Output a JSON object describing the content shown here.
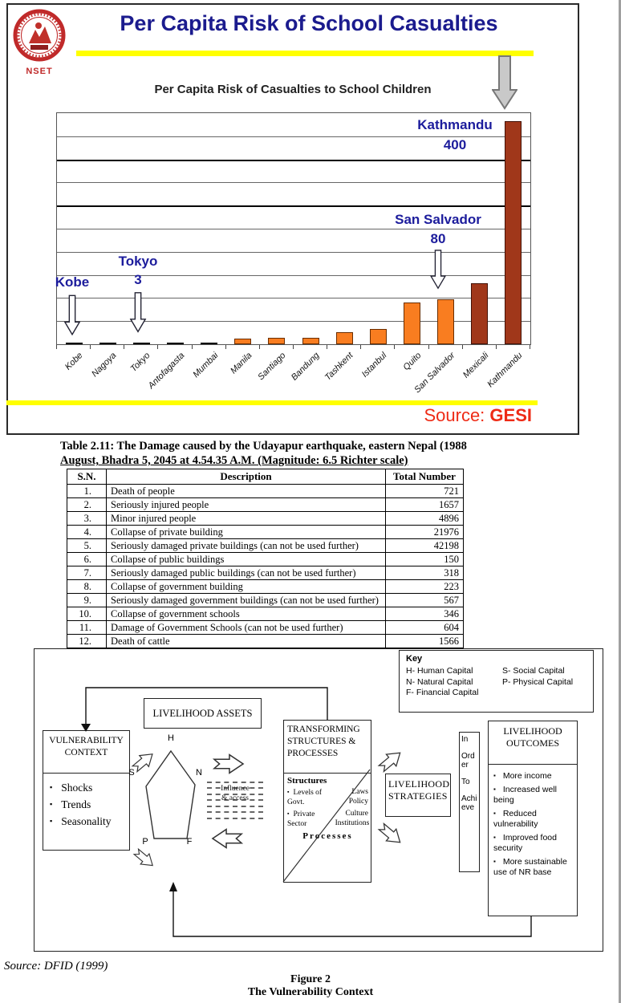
{
  "slide": {
    "logo_text": "NSET",
    "title": "Per Capita Risk of School Casualties",
    "source_label": "Source:",
    "source_value": "GESI"
  },
  "chart_data": {
    "type": "bar",
    "title": "Per Capita Risk of Casualties to School Children",
    "categories": [
      "Kobe",
      "Nagoya",
      "Tokyo",
      "Antofagasta",
      "Mumbai",
      "Manila",
      "Santiago",
      "Bandung",
      "Tashkent",
      "Istanbul",
      "Quito",
      "San Salvador",
      "Mexicali",
      "Kathmandu"
    ],
    "values": [
      1,
      2,
      3,
      3,
      2,
      10,
      12,
      12,
      22,
      27,
      75,
      80,
      110,
      400
    ],
    "bar_colors": [
      "#1a1a1a",
      "#1a1a1a",
      "#1a1a1a",
      "#1a1a1a",
      "#1a1a1a",
      "#f97d20",
      "#f97d20",
      "#f97d20",
      "#f97d20",
      "#f97d20",
      "#f97d20",
      "#f97d20",
      "#a0371a",
      "#a0371a"
    ],
    "bar_borders": [
      "#000000",
      "#000000",
      "#000000",
      "#000000",
      "#000000",
      "#6b2d00",
      "#6b2d00",
      "#6b2d00",
      "#6b2d00",
      "#6b2d00",
      "#6b2d00",
      "#6b2d00",
      "#441106",
      "#441106"
    ],
    "ylim": [
      0,
      415
    ],
    "grid": true,
    "legend": "none",
    "annotations": {
      "kobe": {
        "label": "Kobe"
      },
      "tokyo": {
        "label": "Tokyo",
        "value": "3"
      },
      "san_salvador": {
        "label": "San Salvador",
        "value": "80"
      },
      "kathmandu": {
        "label": "Kathmandu",
        "value": "400"
      }
    }
  },
  "table": {
    "caption_line1": "Table 2.11: The Damage caused by the Udayapur earthquake, eastern Nepal (1988",
    "caption_line2": "August, Bhadra 5, 2045 at 4.54.35 A.M. (Magnitude: 6.5 Richter scale)",
    "headers": [
      "S.N.",
      "Description",
      "Total Number"
    ],
    "rows": [
      [
        "1.",
        "Death of people",
        "721"
      ],
      [
        "2.",
        "Seriously injured people",
        "1657"
      ],
      [
        "3.",
        "Minor injured people",
        "4896"
      ],
      [
        "4.",
        "Collapse of private building",
        "21976"
      ],
      [
        "5.",
        "Seriously damaged private buildings (can not be used further)",
        "42198"
      ],
      [
        "6.",
        "Collapse of public buildings",
        "150"
      ],
      [
        "7.",
        "Seriously damaged public buildings (can not be used further)",
        "318"
      ],
      [
        "8.",
        "Collapse of government building",
        "223"
      ],
      [
        "9.",
        "Seriously damaged government buildings (can not be used further)",
        "567"
      ],
      [
        "10.",
        "Collapse of government schools",
        "346"
      ],
      [
        "11.",
        "Damage of Government Schools (can not be used further)",
        "604"
      ],
      [
        "12.",
        "Death of cattle",
        "1566"
      ]
    ]
  },
  "figure": {
    "key": {
      "title": "Key",
      "left": [
        "H- Human Capital",
        "N- Natural Capital",
        "F- Financial Capital"
      ],
      "right": [
        "S- Social Capital",
        "P- Physical Capital"
      ]
    },
    "vulnerability": {
      "title": "VULNERABILITY CONTEXT",
      "items": [
        "Shocks",
        "Trends",
        "Seasonality"
      ]
    },
    "assets": {
      "title": "LIVELIHOOD ASSETS",
      "pentagon": [
        "H",
        "S",
        "N",
        "P",
        "F"
      ]
    },
    "influence_line1": "Influence",
    "influence_line2": "& access",
    "transforming": {
      "title": "TRANSFORMING STRUCTURES & PROCESSES",
      "structures_heading": "Structures",
      "row1_left": "Levels of Govt.",
      "row1_right": "Laws Policy",
      "row2_left": "Private Sector",
      "row2_right": "Culture Institutions",
      "processes_heading": "Processes"
    },
    "strategies_title": "LIVELIHOOD STRATEGIES",
    "in_order_words": [
      "In",
      "Order",
      "To",
      "Achieve"
    ],
    "outcomes": {
      "title": "LIVELIHOOD OUTCOMES",
      "items": [
        "More income",
        "Increased well being",
        "Reduced vulnerability",
        "Improved food security",
        "More sustainable use of NR base"
      ]
    },
    "source_text": "Source: DFID (1999)",
    "caption_title": "Figure 2",
    "caption_subtitle": "The Vulnerability Context"
  }
}
